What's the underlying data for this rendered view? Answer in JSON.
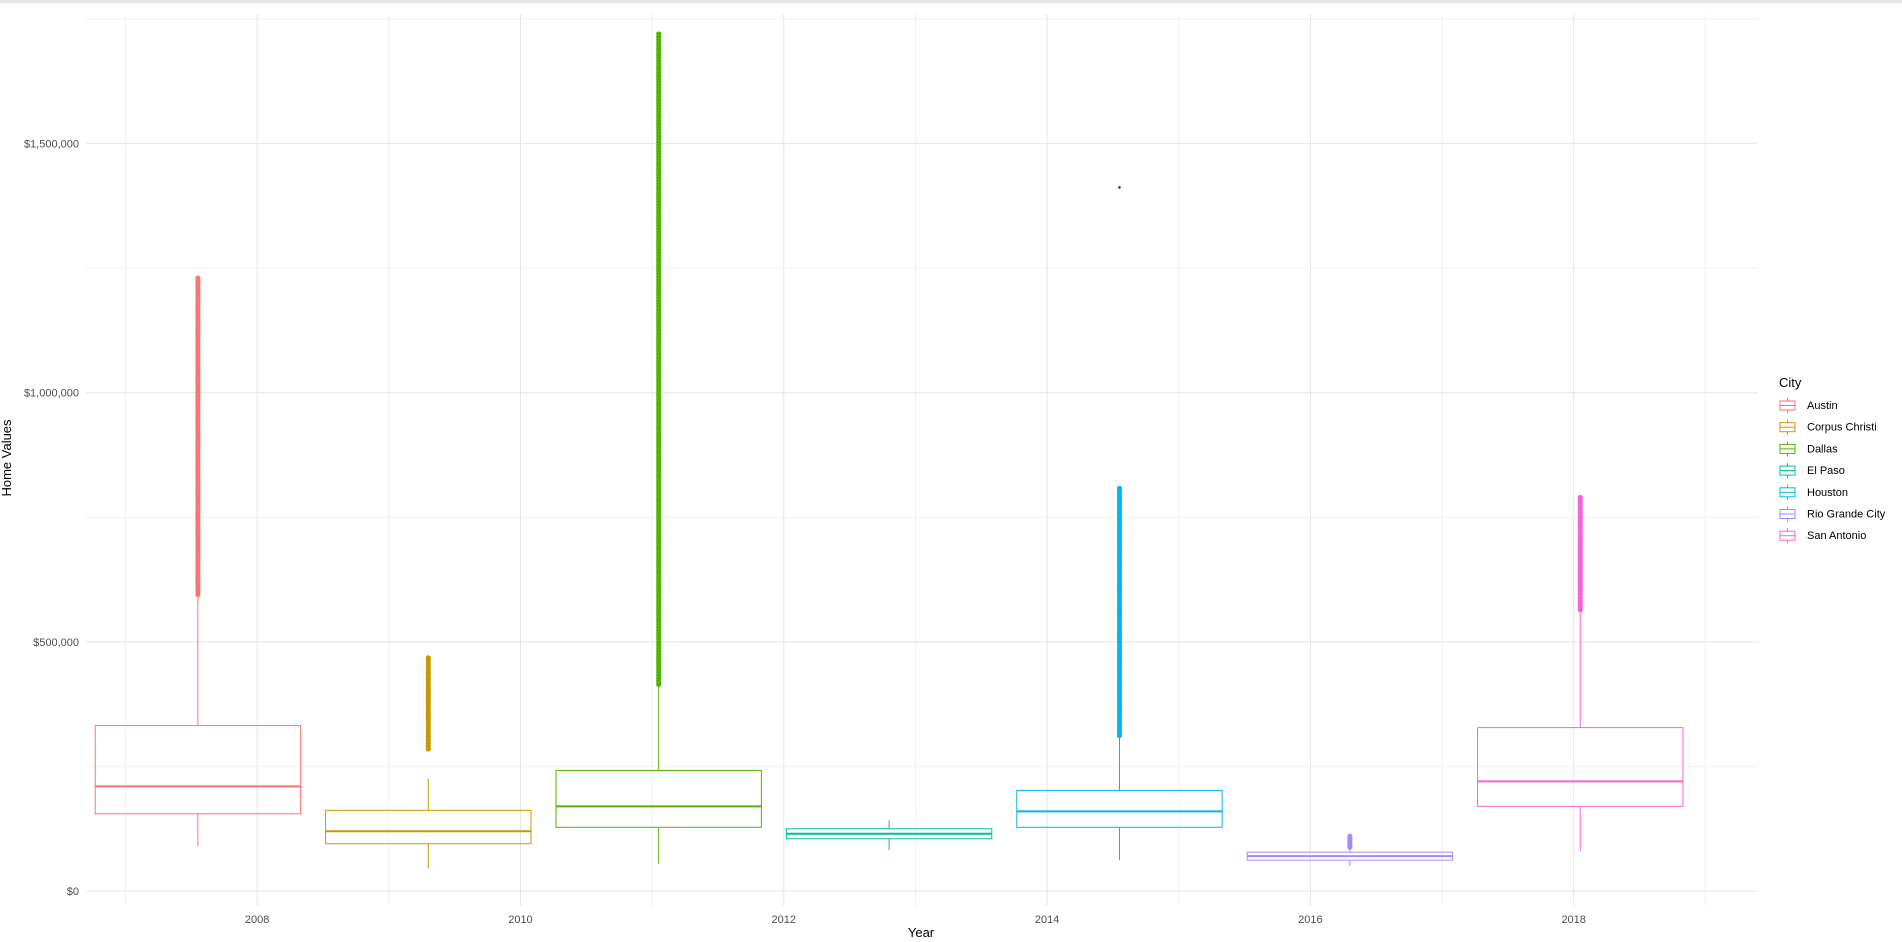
{
  "chart_data": {
    "type": "boxplot",
    "title": "",
    "xlabel": "Year",
    "ylabel": "Home Values",
    "xlim": [
      2006.7,
      2019.4
    ],
    "ylim": [
      -30000,
      1760000
    ],
    "x_ticks": [
      2008,
      2010,
      2012,
      2014,
      2016,
      2018
    ],
    "x_tick_labels": [
      "2008",
      "2010",
      "2012",
      "2014",
      "2016",
      "2018"
    ],
    "y_ticks": [
      0,
      500000,
      1000000,
      1500000
    ],
    "y_tick_labels": [
      "$0",
      "$500,000",
      "$1,000,000",
      "$1,500,000"
    ],
    "grid": true,
    "legend": {
      "title": "City",
      "placement": "right"
    },
    "series": [
      {
        "name": "Austin",
        "color": "#F8766D",
        "x_center": 2007.55,
        "whisker_low": 90000,
        "q1": 155000,
        "median": 210000,
        "q3": 332000,
        "whisker_high": 595000,
        "outlier_range": [
          595000,
          1230000
        ]
      },
      {
        "name": "Corpus Christi",
        "color": "#C49A00",
        "x_center": 2009.3,
        "whisker_low": 45000,
        "q1": 95000,
        "median": 120000,
        "q3": 162000,
        "whisker_high": 225000,
        "outlier_range": [
          285000,
          468000
        ]
      },
      {
        "name": "Dallas",
        "color": "#53B400",
        "x_center": 2011.05,
        "whisker_low": 55000,
        "q1": 128000,
        "median": 170000,
        "q3": 242000,
        "whisker_high": 410000,
        "outlier_range": [
          415000,
          1720000
        ]
      },
      {
        "name": "El Paso",
        "color": "#00C094",
        "x_center": 2012.8,
        "whisker_low": 82000,
        "q1": 105000,
        "median": 115000,
        "q3": 125000,
        "whisker_high": 142000,
        "outlier_range": []
      },
      {
        "name": "Houston",
        "color": "#00B6EB",
        "x_center": 2014.55,
        "whisker_low": 62000,
        "q1": 128000,
        "median": 160000,
        "q3": 202000,
        "whisker_high": 310000,
        "outlier_range": [
          312000,
          808000
        ],
        "extra_outlier": 1412000
      },
      {
        "name": "Rio Grande City",
        "color": "#A58AFF",
        "x_center": 2016.3,
        "whisker_low": 50000,
        "q1": 62000,
        "median": 70000,
        "q3": 78000,
        "whisker_high": 85000,
        "outlier_range": [
          88000,
          110000
        ]
      },
      {
        "name": "San Antonio",
        "color": "#FB61D7",
        "x_center": 2018.05,
        "whisker_low": 80000,
        "q1": 170000,
        "median": 220000,
        "q3": 328000,
        "whisker_high": 560000,
        "outlier_range": [
          565000,
          790000
        ]
      }
    ]
  }
}
